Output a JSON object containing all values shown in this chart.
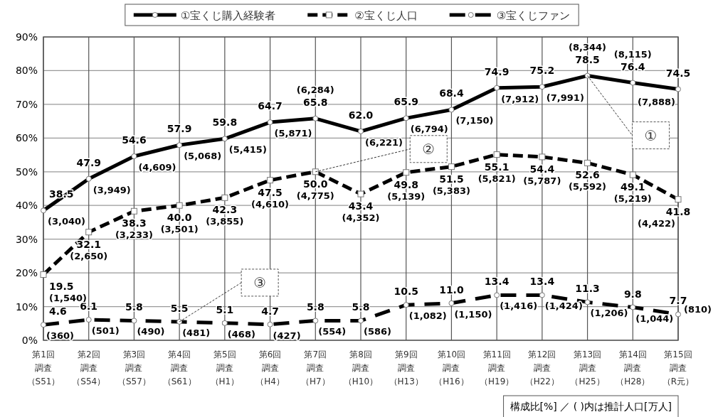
{
  "chart_data": {
    "type": "line",
    "categories": [
      "第1回調査（S51）",
      "第2回調査（S54）",
      "第3回調査（S57）",
      "第4回調査（S61）",
      "第5回調査（H1）",
      "第6回調査（H4）",
      "第7回調査（H7）",
      "第8回調査（H10）",
      "第9回調査（H13）",
      "第10回調査（H16）",
      "第11回調査（H19）",
      "第12回調査（H22）",
      "第13回調査（H25）",
      "第14回調査（H28）",
      "第15回調査（R元）"
    ],
    "series": [
      {
        "name": "①宝くじ購入経験者",
        "color": "#000000",
        "line_style": "solid",
        "marker": "circle",
        "values": [
          38.5,
          47.9,
          54.6,
          57.9,
          59.8,
          64.7,
          65.8,
          62.0,
          65.9,
          68.4,
          74.9,
          75.2,
          78.5,
          76.4,
          74.5
        ],
        "value_labels": [
          "38.5",
          "47.9",
          "54.6",
          "57.9",
          "59.8",
          "64.7",
          "65.8",
          "62.0",
          "65.9",
          "68.4",
          "74.9",
          "75.2",
          "78.5",
          "76.4",
          "74.5"
        ]
      },
      {
        "name": "②宝くじ人口",
        "color": "#000000",
        "line_style": "dashed",
        "marker": "square",
        "values": [
          19.5,
          32.1,
          38.3,
          40.0,
          42.3,
          47.5,
          50.0,
          43.4,
          49.8,
          51.5,
          55.1,
          54.4,
          52.6,
          49.1,
          41.8
        ],
        "value_labels": [
          "19.5",
          "32.1",
          "38.3",
          "40.0",
          "42.3",
          "47.5",
          "50.0",
          "43.4",
          "49.8",
          "51.5",
          "55.1",
          "54.4",
          "52.6",
          "49.1",
          "41.8"
        ]
      },
      {
        "name": "③宝くじファン",
        "color": "#000000",
        "line_style": "dashed",
        "marker": "circle",
        "values": [
          4.6,
          6.1,
          5.8,
          5.5,
          5.1,
          4.7,
          5.8,
          5.8,
          10.5,
          11.0,
          13.4,
          13.4,
          11.3,
          9.8,
          7.7
        ],
        "value_labels": [
          "4.6",
          "6.1",
          "5.8",
          "5.5",
          "5.1",
          "4.7",
          "5.8",
          "5.8",
          "10.5",
          "11.0",
          "13.4",
          "13.4",
          "11.3",
          "9.8",
          "7.7"
        ]
      }
    ],
    "ylim": [
      0,
      90
    ],
    "yticks": [
      {
        "value": 0,
        "label": "0%"
      },
      {
        "value": 10,
        "label": "10%"
      },
      {
        "value": 20,
        "label": "20%"
      },
      {
        "value": 30,
        "label": "30%"
      },
      {
        "value": 40,
        "label": "40%"
      },
      {
        "value": 50,
        "label": "50%"
      },
      {
        "value": 60,
        "label": "60%"
      },
      {
        "value": 70,
        "label": "70%"
      },
      {
        "value": 80,
        "label": "80%"
      },
      {
        "value": 90,
        "label": "90%"
      }
    ],
    "grid": true,
    "legend": "top",
    "annotations": [
      {
        "text": "(3,040)",
        "x": "第1回調査（S51）",
        "y": 38.5
      },
      {
        "text": "(3,949)",
        "x": "第2回調査（S54）",
        "y": 47.9
      },
      {
        "text": "(4,609)",
        "x": "第3回調査（S57）",
        "y": 54.6
      },
      {
        "text": "(5,068)",
        "x": "第4回調査（S61）",
        "y": 57.9
      },
      {
        "text": "(5,415)",
        "x": "第5回調査（H1）",
        "y": 59.8
      },
      {
        "text": "(5,871)",
        "x": "第6回調査（H4）",
        "y": 64.7
      },
      {
        "text": "(6,284)",
        "x": "第7回調査（H7）",
        "y": 65.8
      },
      {
        "text": "(6,221)",
        "x": "第8回調査（H10）",
        "y": 62.0
      },
      {
        "text": "(6,794)",
        "x": "第9回調査（H13）",
        "y": 65.9
      },
      {
        "text": "(7,150)",
        "x": "第10回調査（H16）",
        "y": 68.4
      },
      {
        "text": "(7,912)",
        "x": "第11回調査（H19）",
        "y": 74.9
      },
      {
        "text": "(7,991)",
        "x": "第12回調査（H22）",
        "y": 75.2
      },
      {
        "text": "(8,344)",
        "x": "第13回調査（H25）",
        "y": 78.5
      },
      {
        "text": "(8,115)",
        "x": "第14回調査（H28）",
        "y": 76.4
      },
      {
        "text": "(7,888)",
        "x": "第15回調査（R元）",
        "y": 74.5
      },
      {
        "text": "(1,540)",
        "x": "第1回調査（S51）",
        "y": 19.5
      },
      {
        "text": "(2,650)",
        "x": "第2回調査（S54）",
        "y": 32.1
      },
      {
        "text": "(3,233)",
        "x": "第3回調査（S57）",
        "y": 38.3
      },
      {
        "text": "(3,501)",
        "x": "第4回調査（S61）",
        "y": 40.0
      },
      {
        "text": "(3,855)",
        "x": "第5回調査（H1）",
        "y": 42.3
      },
      {
        "text": "(4,610)",
        "x": "第6回調査（H4）",
        "y": 47.5
      },
      {
        "text": "(4,775)",
        "x": "第7回調査（H7）",
        "y": 50.0
      },
      {
        "text": "(4,352)",
        "x": "第8回調査（H10）",
        "y": 43.4
      },
      {
        "text": "(5,139)",
        "x": "第9回調査（H13）",
        "y": 49.8
      },
      {
        "text": "(5,383)",
        "x": "第10回調査（H16）",
        "y": 51.5
      },
      {
        "text": "(5,821)",
        "x": "第11回調査（H19）",
        "y": 55.1
      },
      {
        "text": "(5,787)",
        "x": "第12回調査（H22）",
        "y": 54.4
      },
      {
        "text": "(5,592)",
        "x": "第13回調査（H25）",
        "y": 52.6
      },
      {
        "text": "(5,219)",
        "x": "第14回調査（H28）",
        "y": 49.1
      },
      {
        "text": "(4,422)",
        "x": "第15回調査（R元）",
        "y": 41.8
      },
      {
        "text": "(360)",
        "x": "第1回調査（S51）",
        "y": 4.6
      },
      {
        "text": "(501)",
        "x": "第2回調査（S54）",
        "y": 6.1
      },
      {
        "text": "(490)",
        "x": "第3回調査（S57）",
        "y": 5.8
      },
      {
        "text": "(481)",
        "x": "第4回調査（S61）",
        "y": 5.5
      },
      {
        "text": "(468)",
        "x": "第5回調査（H1）",
        "y": 5.1
      },
      {
        "text": "(427)",
        "x": "第6回調査（H4）",
        "y": 4.7
      },
      {
        "text": "(554)",
        "x": "第7回調査（H7）",
        "y": 5.8
      },
      {
        "text": "(586)",
        "x": "第8回調査（H10）",
        "y": 5.8
      },
      {
        "text": "(1,082)",
        "x": "第9回調査（H13）",
        "y": 10.5
      },
      {
        "text": "(1,150)",
        "x": "第10回調査（H16）",
        "y": 11.0
      },
      {
        "text": "(1,416)",
        "x": "第11回調査（H19）",
        "y": 13.4
      },
      {
        "text": "(1,424)",
        "x": "第12回調査（H22）",
        "y": 13.4
      },
      {
        "text": "(1,206)",
        "x": "第13回調査（H25）",
        "y": 11.3
      },
      {
        "text": "(1,044)",
        "x": "第14回調査（H28）",
        "y": 9.8
      },
      {
        "text": "(810)",
        "x": "第15回調査（R元）",
        "y": 7.7
      },
      {
        "text": "①",
        "x": "第13回調査（H25）",
        "y": 78.5
      },
      {
        "text": "②",
        "x": "第7回調査（H7）",
        "y": 50.0
      },
      {
        "text": "③",
        "x": "第4回調査（S61）",
        "y": 5.5
      },
      "構成比[%] ／ (  )内は推計人口[万人]"
    ]
  }
}
